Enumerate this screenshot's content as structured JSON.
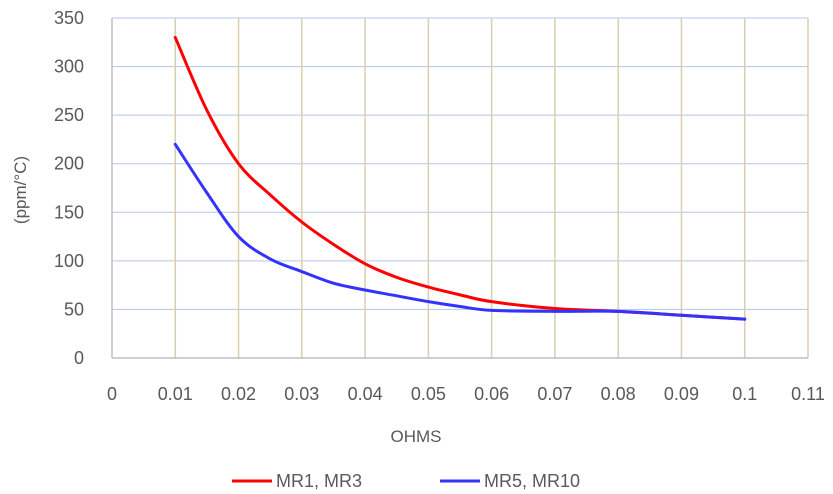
{
  "chart_data": {
    "type": "line",
    "xlabel": "OHMS",
    "ylabel": "(ppm/°C)",
    "xlim": [
      0,
      0.11
    ],
    "ylim": [
      0,
      350
    ],
    "x_ticks": [
      0,
      0.01,
      0.02,
      0.03,
      0.04,
      0.05,
      0.06,
      0.07,
      0.08,
      0.09,
      0.1,
      0.11
    ],
    "x_tick_labels": [
      "0",
      "0.01",
      "0.02",
      "0.03",
      "0.04",
      "0.05",
      "0.06",
      "0.07",
      "0.08",
      "0.09",
      "0.1",
      "0.11"
    ],
    "y_ticks": [
      0,
      50,
      100,
      150,
      200,
      250,
      300,
      350
    ],
    "y_tick_labels": [
      "0",
      "50",
      "100",
      "150",
      "200",
      "250",
      "300",
      "350"
    ],
    "grid": {
      "vertical": true,
      "horizontal": true
    },
    "legend_position": "bottom",
    "series": [
      {
        "name": "MR1, MR3",
        "color": "#ff0000",
        "x": [
          0.01,
          0.015,
          0.02,
          0.025,
          0.03,
          0.035,
          0.04,
          0.045,
          0.05,
          0.055,
          0.06,
          0.07,
          0.08,
          0.09,
          0.1
        ],
        "y": [
          330,
          255,
          200,
          168,
          140,
          117,
          97,
          83,
          73,
          65,
          58,
          51,
          48,
          44,
          40
        ]
      },
      {
        "name": "MR5, MR10",
        "color": "#3333ff",
        "x": [
          0.01,
          0.015,
          0.02,
          0.025,
          0.03,
          0.035,
          0.04,
          0.045,
          0.05,
          0.055,
          0.06,
          0.07,
          0.08,
          0.09,
          0.1
        ],
        "y": [
          220,
          170,
          125,
          102,
          89,
          77,
          70,
          64,
          58,
          53,
          49,
          48,
          48,
          44,
          40
        ]
      }
    ]
  }
}
